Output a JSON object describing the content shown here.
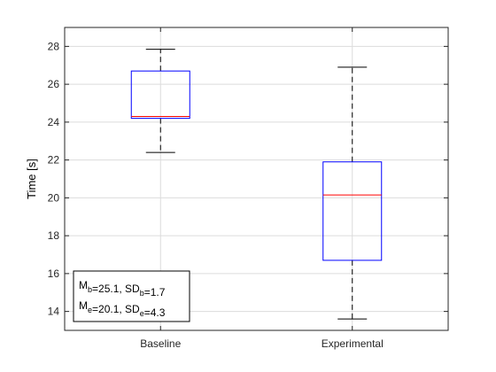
{
  "chart_data": {
    "type": "boxplot",
    "ylabel": "Time [s]",
    "xlabel": "",
    "categories": [
      "Baseline",
      "Experimental"
    ],
    "ylim": [
      13,
      29
    ],
    "yticks": [
      14,
      16,
      18,
      20,
      22,
      24,
      26,
      28
    ],
    "grid": true,
    "boxes": [
      {
        "category": "Baseline",
        "whisker_low": 22.4,
        "q1": 24.2,
        "median": 24.3,
        "q3": 26.7,
        "whisker_high": 27.85
      },
      {
        "category": "Experimental",
        "whisker_low": 13.6,
        "q1": 16.7,
        "median": 20.15,
        "q3": 21.9,
        "whisker_high": 26.9
      }
    ],
    "colors": {
      "box": "#0000ff",
      "median": "#ff0000",
      "whisker": "#000000",
      "grid": "#dcdcdc",
      "axes": "#262626"
    },
    "annotation": {
      "placement": "bottom-left",
      "lines": [
        [
          {
            "t": "M",
            "sub": "b"
          },
          {
            "t": "=25.1, SD",
            "sub": "b"
          },
          {
            "t": "=1.7"
          }
        ],
        [
          {
            "t": "M",
            "sub": "e"
          },
          {
            "t": "=20.1, SD",
            "sub": "e"
          },
          {
            "t": "=4.3"
          }
        ]
      ]
    }
  }
}
